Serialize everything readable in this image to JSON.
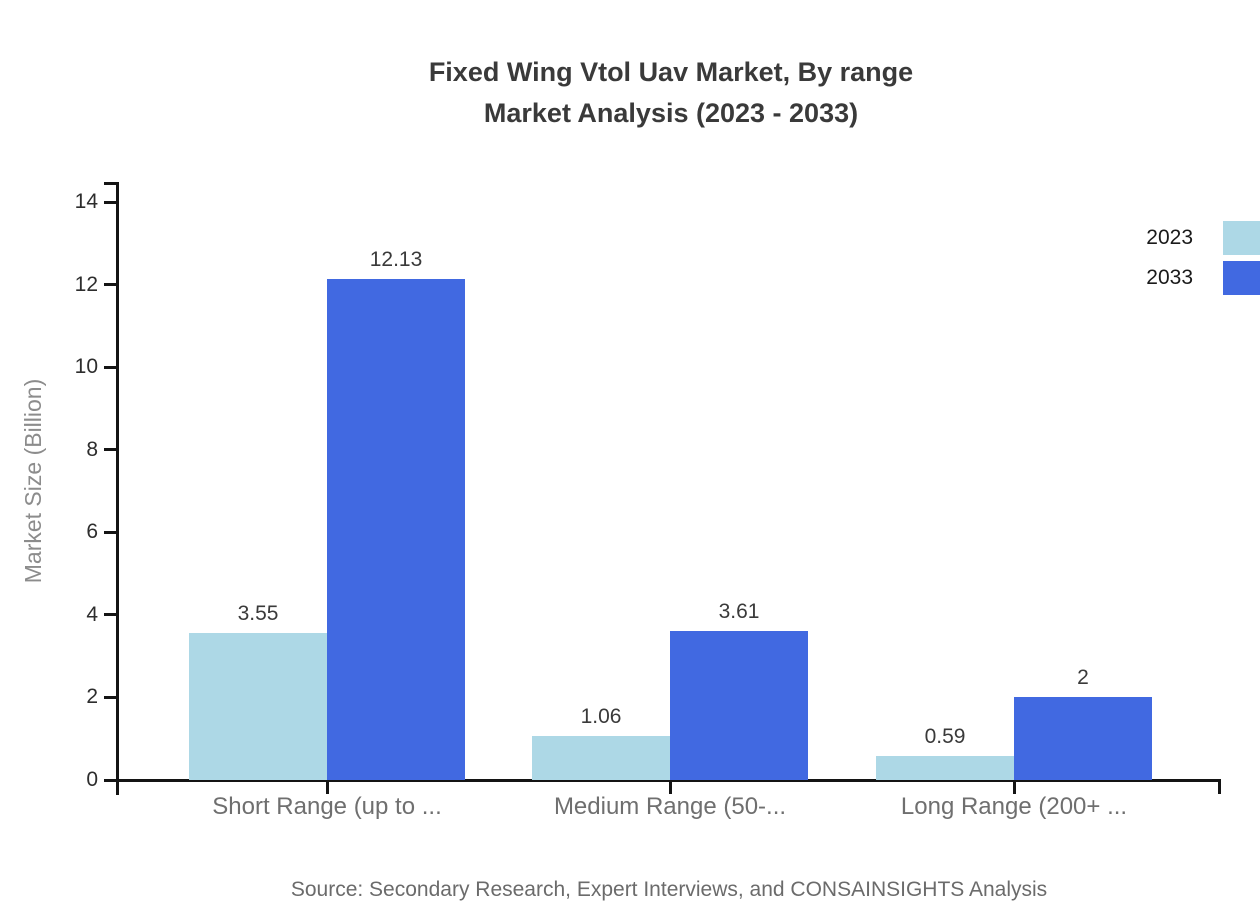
{
  "title": {
    "line1": "Fixed Wing Vtol Uav Market, By range",
    "line2": "Market Analysis (2023 - 2033)"
  },
  "source": "Source: Secondary Research, Expert Interviews, and CONSAINSIGHTS Analysis",
  "chart_data": {
    "type": "bar",
    "title": "Fixed Wing Vtol Uav Market, By range Market Analysis (2023 - 2033)",
    "categories": [
      "Short Range (up to ...",
      "Medium Range (50-...",
      "Long Range (200+ ..."
    ],
    "series": [
      {
        "name": "2023",
        "color": "#ADD8E6",
        "values": [
          3.55,
          1.06,
          0.59
        ]
      },
      {
        "name": "2033",
        "color": "#4169E1",
        "values": [
          12.13,
          3.61,
          2
        ]
      }
    ],
    "xlabel": "",
    "ylabel": "Market Size (Billion)",
    "ylim": [
      0,
      14
    ],
    "yticks": [
      0,
      2,
      4,
      6,
      8,
      10,
      12,
      14
    ],
    "grid": false,
    "legend_position": "top-right",
    "value_labels_shown": true
  }
}
